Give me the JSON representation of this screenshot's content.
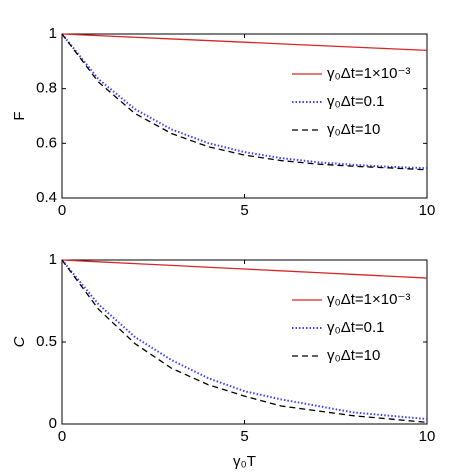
{
  "chart_data": [
    {
      "type": "line",
      "ylabel": "F",
      "x": [
        0,
        1,
        2,
        3,
        4,
        5,
        6,
        7,
        8,
        9,
        10
      ],
      "xlim": [
        0,
        10
      ],
      "xticks": [
        0,
        5,
        10
      ],
      "ylim": [
        0.4,
        1
      ],
      "yticks": [
        0.4,
        0.6,
        0.8,
        1
      ],
      "legend": "upper right",
      "series": [
        {
          "name": "γ₀Δt=1×10⁻³",
          "color": "#d62728",
          "style": "solid",
          "values": [
            1,
            0.994,
            0.988,
            0.982,
            0.976,
            0.97,
            0.964,
            0.958,
            0.952,
            0.946,
            0.94
          ]
        },
        {
          "name": "γ₀Δt=0.1",
          "color": "#4040ff",
          "style": "dotted",
          "values": [
            1,
            0.835,
            0.725,
            0.651,
            0.601,
            0.568,
            0.546,
            0.531,
            0.521,
            0.514,
            0.509
          ]
        },
        {
          "name": "γ₀Δt=10",
          "color": "#000000",
          "style": "dashed",
          "values": [
            1,
            0.824,
            0.709,
            0.636,
            0.588,
            0.557,
            0.537,
            0.524,
            0.516,
            0.51,
            0.503
          ]
        }
      ]
    },
    {
      "type": "line",
      "ylabel": "C",
      "xlabel": "γ₀T",
      "x": [
        0,
        1,
        2,
        3,
        4,
        5,
        6,
        7,
        8,
        9,
        10
      ],
      "xlim": [
        0,
        10
      ],
      "xticks": [
        0,
        5,
        10
      ],
      "ylim": [
        0,
        1
      ],
      "yticks": [
        0,
        0.5,
        1
      ],
      "legend": "upper right",
      "series": [
        {
          "name": "γ₀Δt=1×10⁻³",
          "color": "#d62728",
          "style": "solid",
          "values": [
            1,
            0.989,
            0.978,
            0.967,
            0.956,
            0.945,
            0.934,
            0.923,
            0.912,
            0.901,
            0.89
          ]
        },
        {
          "name": "γ₀Δt=0.1",
          "color": "#4040ff",
          "style": "dotted",
          "values": [
            1,
            0.73,
            0.53,
            0.39,
            0.28,
            0.2,
            0.15,
            0.11,
            0.07,
            0.05,
            0.03
          ]
        },
        {
          "name": "γ₀Δt=10",
          "color": "#000000",
          "style": "dashed",
          "values": [
            1,
            0.7,
            0.49,
            0.34,
            0.24,
            0.17,
            0.11,
            0.08,
            0.05,
            0.03,
            0.01
          ]
        }
      ]
    }
  ]
}
